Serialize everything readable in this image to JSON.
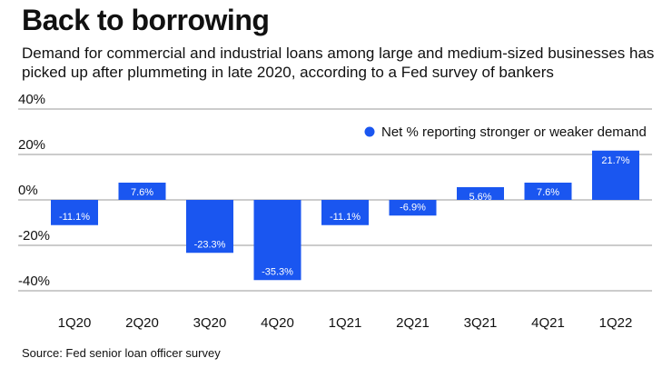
{
  "title": "Back to borrowing",
  "subtitle": "Demand for commercial and industrial loans among large and medium-sized businesses has picked up after plummeting in late 2020, according to a Fed survey of bankers",
  "source": "Source: Fed senior loan officer survey",
  "colors": {
    "bar": "#1a56f0",
    "grid": "#9a9a9a",
    "text": "#111111",
    "label_text": "#ffffff"
  },
  "chart_data": {
    "type": "bar",
    "categories": [
      "1Q20",
      "2Q20",
      "3Q20",
      "4Q20",
      "1Q21",
      "2Q21",
      "3Q21",
      "4Q21",
      "1Q22"
    ],
    "series": [
      {
        "name": "Net % reporting stronger or weaker demand",
        "values": [
          -11.1,
          7.6,
          -23.3,
          -35.3,
          -11.1,
          -6.9,
          5.6,
          7.6,
          21.7
        ]
      }
    ],
    "data_labels": [
      "-11.1%",
      "7.6%",
      "-23.3%",
      "-35.3%",
      "-11.1%",
      "-6.9%",
      "5.6%",
      "7.6%",
      "21.7%"
    ],
    "yticks": [
      40,
      20,
      0,
      -20,
      -40
    ],
    "ytick_labels": [
      "40%",
      "20%",
      "0%",
      "-20%",
      "-40%"
    ],
    "ylim": [
      -40,
      40
    ],
    "grid": true,
    "legend_position": "top-right"
  }
}
